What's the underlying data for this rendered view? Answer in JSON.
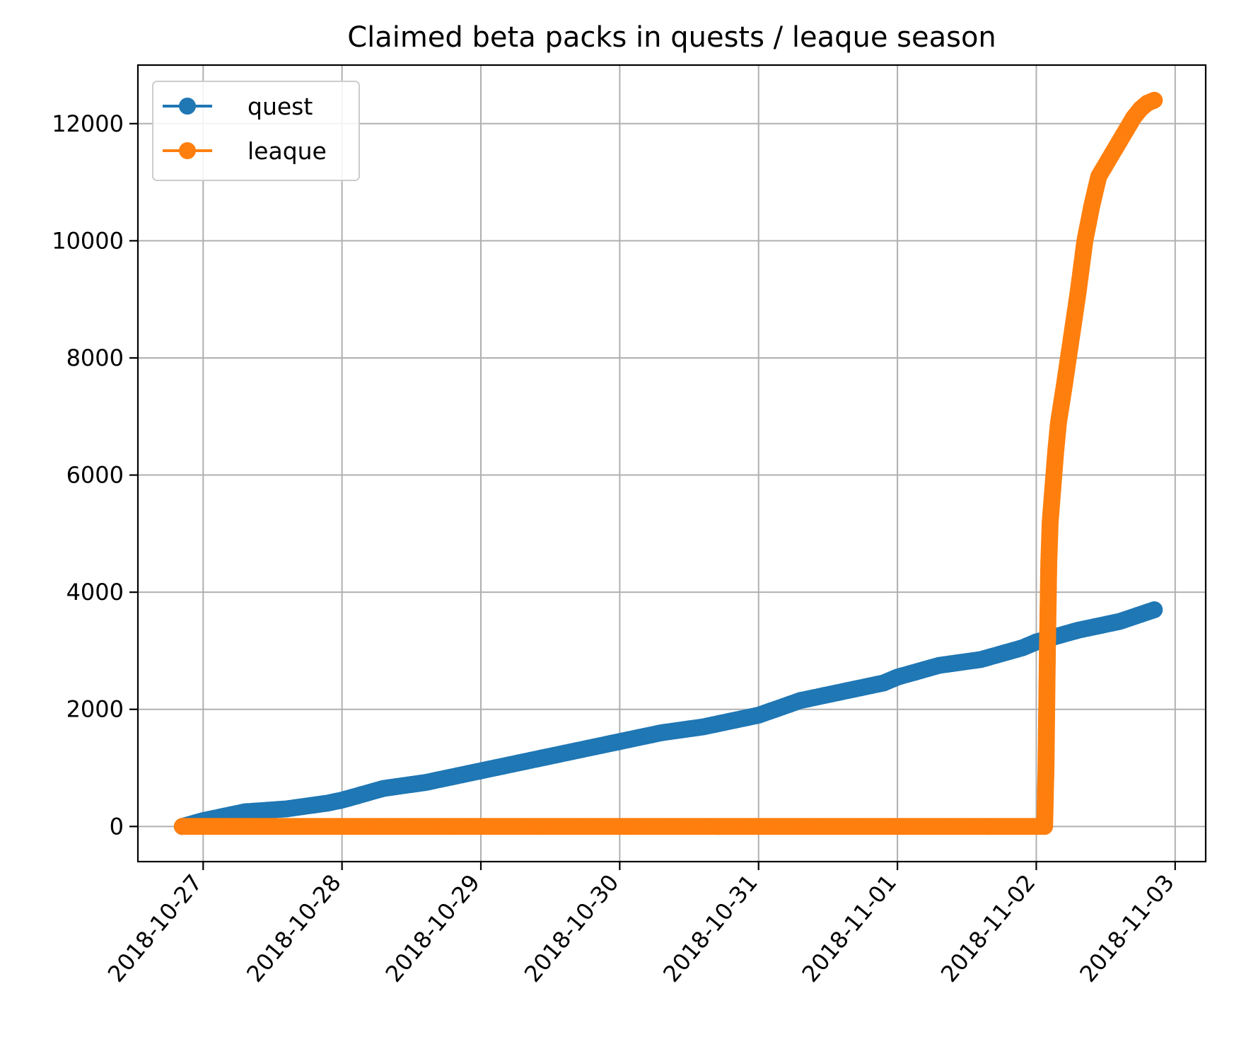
{
  "chart_data": {
    "type": "line",
    "title": "Claimed beta packs in quests / leaque season",
    "xlabel": "",
    "ylabel": "",
    "grid": true,
    "legend_position": "top-left",
    "x_ticks": [
      "2018-10-27",
      "2018-10-28",
      "2018-10-29",
      "2018-10-30",
      "2018-10-31",
      "2018-11-01",
      "2018-11-02",
      "2018-11-03"
    ],
    "y_ticks": [
      0,
      2000,
      4000,
      6000,
      8000,
      10000,
      12000
    ],
    "y_tick_labels": [
      "0",
      "2000",
      "4000",
      "6000",
      "8000",
      "10000",
      "12000"
    ],
    "xlim_days_from_2018_10_27": [
      -0.47,
      7.22
    ],
    "ylim": [
      -600,
      13000
    ],
    "series": [
      {
        "name": "quest",
        "color": "#1f77b4",
        "marker": "circle",
        "x_days_from_2018_10_27": [
          -0.15,
          0,
          0.3,
          0.6,
          0.9,
          1.0,
          1.3,
          1.6,
          1.9,
          2.0,
          2.3,
          2.6,
          2.9,
          3.0,
          3.3,
          3.6,
          3.9,
          4.0,
          4.3,
          4.6,
          4.9,
          5.0,
          5.3,
          5.6,
          5.9,
          6.0,
          6.3,
          6.6,
          6.85
        ],
        "values": [
          0,
          100,
          250,
          300,
          400,
          450,
          650,
          750,
          900,
          950,
          1100,
          1250,
          1400,
          1450,
          1600,
          1700,
          1850,
          1900,
          2150,
          2300,
          2450,
          2550,
          2750,
          2850,
          3050,
          3150,
          3350,
          3500,
          3700
        ]
      },
      {
        "name": "leaque",
        "color": "#ff7f0e",
        "marker": "circle",
        "x_days_from_2018_10_27": [
          -0.15,
          1.0,
          2.0,
          3.0,
          4.0,
          5.0,
          6.0,
          6.06,
          6.07,
          6.08,
          6.09,
          6.1,
          6.12,
          6.14,
          6.16,
          6.2,
          6.25,
          6.3,
          6.35,
          6.4,
          6.45,
          6.5,
          6.55,
          6.6,
          6.65,
          6.7,
          6.75,
          6.8,
          6.85
        ],
        "values": [
          0,
          0,
          0,
          0,
          0,
          0,
          0,
          0,
          1000,
          3000,
          4500,
          5200,
          5800,
          6400,
          6900,
          7500,
          8300,
          9100,
          10000,
          10600,
          11100,
          11300,
          11500,
          11700,
          11900,
          12100,
          12250,
          12350,
          12400
        ]
      }
    ]
  }
}
